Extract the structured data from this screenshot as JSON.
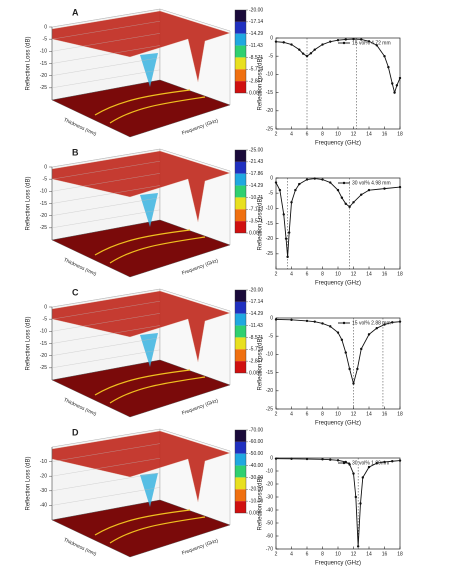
{
  "chart_data": [
    {
      "type": "surface3d",
      "panel_label": "A",
      "zlabel": "Reflection Loss (dB)",
      "xlabel": "Thickness (mm)",
      "ylabel": "Frequency (GHz)",
      "zlim": [
        -30,
        0
      ],
      "zticks": [
        0,
        -5,
        -10,
        -15,
        -20,
        -25
      ],
      "colorbar_ticks": [
        {
          "value": -20,
          "label": "-20.00"
        },
        {
          "value": -17.14,
          "label": "-17.14"
        },
        {
          "value": -14.29,
          "label": "-14.29"
        },
        {
          "value": -11.43,
          "label": "-11.43"
        },
        {
          "value": -8.571,
          "label": "-8.571"
        },
        {
          "value": -5.714,
          "label": "-5.714"
        },
        {
          "value": -2.857,
          "label": "-2.857"
        },
        {
          "value": 0,
          "label": "0.000"
        }
      ]
    },
    {
      "type": "line",
      "xlabel": "Frequency (GHz)",
      "ylabel": "Reflection Loss (dB)",
      "xlim": [
        2,
        18
      ],
      "xticks": [
        2,
        4,
        6,
        8,
        10,
        12,
        14,
        16,
        18
      ],
      "ylim": [
        -25,
        0
      ],
      "yticks": [
        0,
        -5,
        -10,
        -15,
        -20,
        -25
      ],
      "vlines": [
        6,
        12.4
      ],
      "x": [
        2,
        3,
        4,
        5,
        5.5,
        6,
        6.5,
        7,
        8,
        9,
        10,
        11,
        12,
        13,
        14,
        15,
        16,
        16.5,
        17,
        17.3,
        17.6,
        18
      ],
      "series": [
        {
          "name": "15 vol% 4.72 mm",
          "color": "#111111",
          "values": [
            -1,
            -1.2,
            -1.8,
            -3.2,
            -4.3,
            -5,
            -4.2,
            -3.2,
            -1.8,
            -1,
            -0.6,
            -0.4,
            -0.3,
            -0.4,
            -0.9,
            -2,
            -5,
            -8,
            -12.5,
            -15,
            -13,
            -11
          ]
        }
      ]
    },
    {
      "type": "surface3d",
      "panel_label": "B",
      "zlabel": "Reflection Loss (dB)",
      "xlabel": "Thickness (mm)",
      "ylabel": "Frequency (GHz)",
      "zlim": [
        -30,
        0
      ],
      "zticks": [
        0,
        -5,
        -10,
        -15,
        -20,
        -25
      ],
      "colorbar_ticks": [
        {
          "value": -25,
          "label": "-25.00"
        },
        {
          "value": -21.43,
          "label": "-21.43"
        },
        {
          "value": -17.86,
          "label": "-17.86"
        },
        {
          "value": -14.29,
          "label": "-14.29"
        },
        {
          "value": -10.71,
          "label": "-10.71"
        },
        {
          "value": -7.143,
          "label": "-7.143"
        },
        {
          "value": -3.571,
          "label": "-3.571"
        },
        {
          "value": 0,
          "label": "0.000"
        }
      ]
    },
    {
      "type": "line",
      "xlabel": "Frequency (GHz)",
      "ylabel": "Reflection Loss (dB)",
      "xlim": [
        2,
        18
      ],
      "xticks": [
        2,
        4,
        6,
        8,
        10,
        12,
        14,
        16,
        18
      ],
      "ylim": [
        -30,
        0
      ],
      "yticks": [
        0,
        -5,
        -10,
        -15,
        -20,
        -25
      ],
      "vlines": [
        3.5,
        11.5
      ],
      "x": [
        2,
        2.5,
        3,
        3.3,
        3.5,
        3.7,
        4,
        4.5,
        5,
        6,
        7,
        8,
        9,
        10,
        10.5,
        11,
        11.5,
        12,
        13,
        14,
        16,
        18
      ],
      "series": [
        {
          "name": "30 vol% 4.98 mm",
          "color": "#111111",
          "values": [
            -1.5,
            -4,
            -12,
            -20,
            -26,
            -18,
            -8,
            -4,
            -2,
            -0.5,
            -0.2,
            -0.5,
            -1.5,
            -4,
            -6.5,
            -8.5,
            -9.5,
            -8,
            -5.5,
            -4,
            -3.5,
            -3
          ]
        }
      ]
    },
    {
      "type": "surface3d",
      "panel_label": "C",
      "zlabel": "Reflection Loss (dB)",
      "xlabel": "Thickness (mm)",
      "ylabel": "Frequency (GHz)",
      "zlim": [
        -30,
        0
      ],
      "zticks": [
        0,
        -5,
        -10,
        -15,
        -20,
        -25
      ],
      "colorbar_ticks": [
        {
          "value": -20,
          "label": "-20.00"
        },
        {
          "value": -17.14,
          "label": "-17.14"
        },
        {
          "value": -14.29,
          "label": "-14.29"
        },
        {
          "value": -11.43,
          "label": "-11.43"
        },
        {
          "value": -8.571,
          "label": "-8.571"
        },
        {
          "value": -5.714,
          "label": "-5.714"
        },
        {
          "value": -2.857,
          "label": "-2.857"
        },
        {
          "value": 0,
          "label": "0.000"
        }
      ]
    },
    {
      "type": "line",
      "xlabel": "Frequency (GHz)",
      "ylabel": "Reflection Loss (dB)",
      "xlim": [
        2,
        18
      ],
      "xticks": [
        2,
        4,
        6,
        8,
        10,
        12,
        14,
        16,
        18
      ],
      "ylim": [
        -25,
        0
      ],
      "yticks": [
        0,
        -5,
        -10,
        -15,
        -20,
        -25
      ],
      "vlines": [
        12,
        15.8
      ],
      "x": [
        2,
        4,
        6,
        7,
        8,
        9,
        10,
        10.5,
        11,
        11.5,
        12,
        12.5,
        13,
        14,
        15,
        16,
        17,
        18
      ],
      "series": [
        {
          "name": "15 vol% 2.88 mm",
          "color": "#111111",
          "values": [
            -0.4,
            -0.5,
            -0.8,
            -1,
            -1.5,
            -2.3,
            -4,
            -6,
            -9.5,
            -14,
            -18,
            -14,
            -8.5,
            -4.5,
            -2.8,
            -1.8,
            -1.2,
            -1
          ]
        }
      ]
    },
    {
      "type": "surface3d",
      "panel_label": "D",
      "zlabel": "Reflection Loss (dB)",
      "xlabel": "Thickness (mm)",
      "ylabel": "Frequency (GHz)",
      "zlim": [
        -50,
        0
      ],
      "zticks": [
        -10,
        -20,
        -30,
        -40
      ],
      "colorbar_ticks": [
        {
          "value": -70,
          "label": "-70.00"
        },
        {
          "value": -60,
          "label": "-60.00"
        },
        {
          "value": -50,
          "label": "-50.00"
        },
        {
          "value": -40,
          "label": "-40.00"
        },
        {
          "value": -30,
          "label": "-30.00"
        },
        {
          "value": -20,
          "label": "-20.00"
        },
        {
          "value": -10,
          "label": "-10.00"
        },
        {
          "value": 0,
          "label": "0.000"
        }
      ]
    },
    {
      "type": "line",
      "xlabel": "Frequency (GHz)",
      "ylabel": "Reflection Loss (dB)",
      "xlim": [
        2,
        18
      ],
      "xticks": [
        2,
        4,
        6,
        8,
        10,
        12,
        14,
        16,
        18
      ],
      "ylim": [
        -70,
        0
      ],
      "yticks": [
        0,
        -10,
        -20,
        -30,
        -40,
        -50,
        -60,
        -70
      ],
      "vlines": [
        12.6
      ],
      "x": [
        2,
        4,
        6,
        8,
        9,
        10,
        11,
        11.5,
        12,
        12.3,
        12.6,
        12.9,
        13.2,
        14,
        15,
        16,
        17,
        18
      ],
      "series": [
        {
          "name": "30 vol% 1.89mm",
          "color": "#111111",
          "values": [
            -0.5,
            -0.6,
            -0.8,
            -1,
            -1.3,
            -1.8,
            -3,
            -5,
            -12,
            -30,
            -68,
            -35,
            -15,
            -7,
            -4,
            -3,
            -2.5,
            -2
          ]
        }
      ]
    }
  ]
}
